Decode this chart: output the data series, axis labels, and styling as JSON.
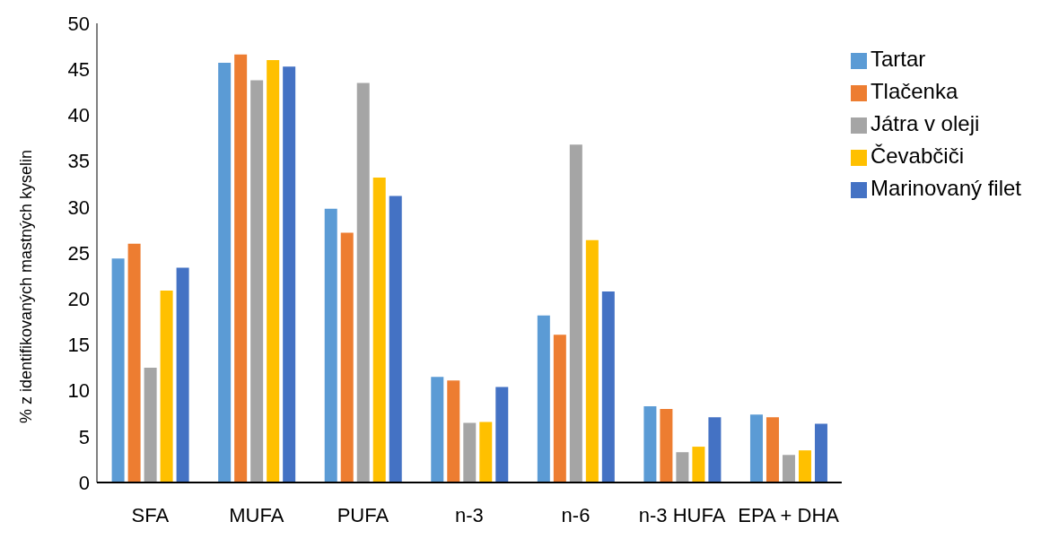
{
  "chart_data": {
    "type": "bar",
    "ylabel": "% z identifikovaných mastných kyselin",
    "categories": [
      "SFA",
      "MUFA",
      "PUFA",
      "n-3",
      "n-6",
      "n-3 HUFA",
      "EPA + DHA"
    ],
    "series": [
      {
        "name": "Tartar",
        "color": "#5b9bd5",
        "values": [
          24.4,
          45.7,
          29.8,
          11.5,
          18.2,
          8.3,
          7.4
        ]
      },
      {
        "name": "Tlačenka",
        "color": "#ed7d31",
        "values": [
          26,
          46.6,
          27.2,
          11.1,
          16.1,
          8.0,
          7.1
        ]
      },
      {
        "name": "Játra v oleji",
        "color": "#a5a5a5",
        "values": [
          12.5,
          43.8,
          43.5,
          6.5,
          36.8,
          3.3,
          3.0
        ]
      },
      {
        "name": "Čevabčiči",
        "color": "#ffc000",
        "values": [
          20.9,
          46.0,
          33.2,
          6.6,
          26.4,
          3.9,
          3.5
        ]
      },
      {
        "name": "Marinovaný filet",
        "color": "#4472c4",
        "values": [
          23.4,
          45.3,
          31.2,
          10.4,
          20.8,
          7.1,
          6.4
        ]
      }
    ],
    "ylim": [
      0,
      50
    ],
    "yticks": [
      0,
      5,
      10,
      15,
      20,
      25,
      30,
      35,
      40,
      45,
      50
    ],
    "grid": false,
    "legend": "top right"
  }
}
